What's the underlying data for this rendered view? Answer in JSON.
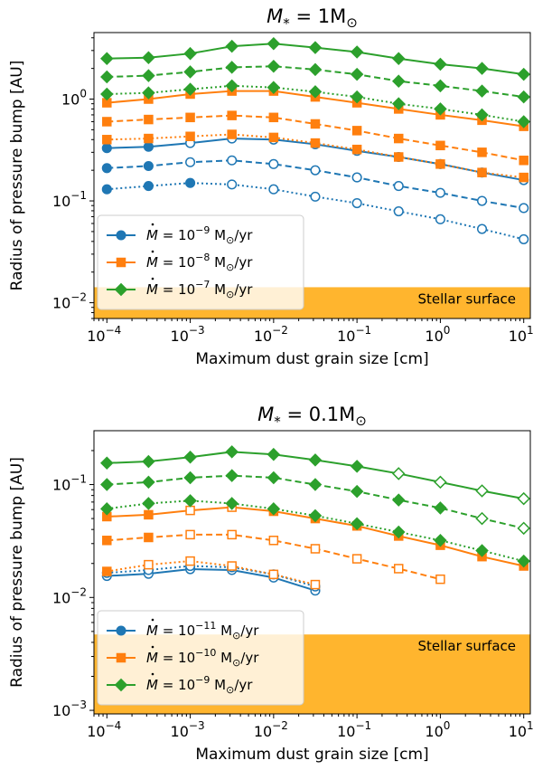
{
  "colors": {
    "blue": "#1f77b4",
    "orange": "#ff7f0e",
    "green": "#2ca02c",
    "stellar_band": "#ffa500"
  },
  "chart_data": [
    {
      "type": "line",
      "title": "M* = 1M⊙",
      "title_parts": {
        "var": "M",
        "sub": "*",
        "eq": " = 1M",
        "sun": "⊙"
      },
      "xlabel": "Maximum dust grain size [cm]",
      "ylabel": "Radius of pressure bump [AU]",
      "xscale": "log",
      "yscale": "log",
      "xlim": [
        7e-05,
        12
      ],
      "ylim": [
        0.007,
        4.5
      ],
      "xticks": [
        0.0001,
        0.001,
        0.01,
        0.1,
        1,
        10
      ],
      "xtick_labels": [
        {
          "base": "10",
          "exp": "−4"
        },
        {
          "base": "10",
          "exp": "−3"
        },
        {
          "base": "10",
          "exp": "−2"
        },
        {
          "base": "10",
          "exp": "−1"
        },
        {
          "base": "10",
          "exp": "0"
        },
        {
          "base": "10",
          "exp": "1"
        }
      ],
      "yticks": [
        0.01,
        0.1,
        1
      ],
      "ytick_labels": [
        {
          "base": "10",
          "exp": "−2"
        },
        {
          "base": "10",
          "exp": "−1"
        },
        {
          "base": "10",
          "exp": "0"
        }
      ],
      "band": {
        "label": "Stellar surface",
        "y_max": 0.0142
      },
      "legend": {
        "position": "lower-left",
        "entries": [
          {
            "color": "blue",
            "marker": "circle",
            "prefix": " = 10",
            "exp": "−9",
            "unit": " M",
            "sun": "⊙",
            "suffix": "/yr"
          },
          {
            "color": "orange",
            "marker": "square",
            "prefix": " = 10",
            "exp": "−8",
            "unit": " M",
            "sun": "⊙",
            "suffix": "/yr"
          },
          {
            "color": "green",
            "marker": "diamond",
            "prefix": " = 10",
            "exp": "−7",
            "unit": " M",
            "sun": "⊙",
            "suffix": "/yr"
          }
        ]
      },
      "x": [
        0.0001,
        0.000316,
        0.001,
        0.00316,
        0.01,
        0.0316,
        0.1,
        0.316,
        1,
        3.16,
        10
      ],
      "series": [
        {
          "color": "blue",
          "marker": "circle",
          "style": "solid",
          "values": [
            0.33,
            0.34,
            0.37,
            0.41,
            0.4,
            0.36,
            0.31,
            0.27,
            0.23,
            0.19,
            0.16
          ],
          "filled": [
            true,
            true,
            false,
            false,
            false,
            false,
            false,
            false,
            false,
            false,
            false
          ]
        },
        {
          "color": "blue",
          "marker": "circle",
          "style": "dashed",
          "values": [
            0.21,
            0.22,
            0.24,
            0.25,
            0.23,
            0.2,
            0.17,
            0.14,
            0.12,
            0.1,
            0.085
          ],
          "filled": [
            true,
            true,
            false,
            false,
            false,
            false,
            false,
            false,
            false,
            false,
            false
          ]
        },
        {
          "color": "blue",
          "marker": "circle",
          "style": "dotted",
          "values": [
            0.13,
            0.14,
            0.15,
            0.145,
            0.13,
            0.11,
            0.095,
            0.079,
            0.066,
            0.053,
            0.042
          ],
          "filled": [
            true,
            true,
            true,
            false,
            false,
            false,
            false,
            false,
            false,
            false,
            false
          ]
        },
        {
          "color": "orange",
          "marker": "square",
          "style": "solid",
          "values": [
            0.92,
            1.0,
            1.12,
            1.2,
            1.2,
            1.05,
            0.92,
            0.8,
            0.7,
            0.62,
            0.54
          ],
          "filled": [
            true,
            true,
            true,
            true,
            true,
            true,
            true,
            true,
            true,
            true,
            true
          ]
        },
        {
          "color": "orange",
          "marker": "square",
          "style": "dashed",
          "values": [
            0.6,
            0.63,
            0.66,
            0.69,
            0.66,
            0.57,
            0.49,
            0.41,
            0.35,
            0.3,
            0.25
          ],
          "filled": [
            true,
            true,
            true,
            true,
            true,
            true,
            true,
            true,
            true,
            true,
            true
          ]
        },
        {
          "color": "orange",
          "marker": "square",
          "style": "dotted",
          "values": [
            0.4,
            0.41,
            0.43,
            0.45,
            0.42,
            0.37,
            0.32,
            0.27,
            0.23,
            0.19,
            0.17
          ],
          "filled": [
            true,
            true,
            true,
            true,
            true,
            true,
            true,
            true,
            true,
            true,
            true
          ]
        },
        {
          "color": "green",
          "marker": "diamond",
          "style": "solid",
          "values": [
            2.5,
            2.55,
            2.8,
            3.3,
            3.5,
            3.2,
            2.9,
            2.5,
            2.2,
            2.0,
            1.75
          ],
          "filled": [
            true,
            true,
            true,
            true,
            true,
            true,
            true,
            true,
            true,
            true,
            true
          ]
        },
        {
          "color": "green",
          "marker": "diamond",
          "style": "dashed",
          "values": [
            1.65,
            1.7,
            1.85,
            2.05,
            2.1,
            1.95,
            1.75,
            1.5,
            1.35,
            1.2,
            1.05
          ],
          "filled": [
            true,
            true,
            true,
            true,
            true,
            true,
            true,
            true,
            true,
            true,
            true
          ]
        },
        {
          "color": "green",
          "marker": "diamond",
          "style": "dotted",
          "values": [
            1.12,
            1.15,
            1.25,
            1.35,
            1.3,
            1.18,
            1.05,
            0.9,
            0.8,
            0.7,
            0.6
          ],
          "filled": [
            true,
            true,
            true,
            true,
            true,
            true,
            true,
            true,
            true,
            true,
            true
          ]
        }
      ]
    },
    {
      "type": "line",
      "title": "M* = 0.1M⊙",
      "title_parts": {
        "var": "M",
        "sub": "*",
        "eq": " = 0.1M",
        "sun": "⊙"
      },
      "xlabel": "Maximum dust grain size [cm]",
      "ylabel": "Radius of pressure bump [AU]",
      "xscale": "log",
      "yscale": "log",
      "xlim": [
        7e-05,
        12
      ],
      "ylim": [
        0.00093,
        0.3
      ],
      "xticks": [
        0.0001,
        0.001,
        0.01,
        0.1,
        1,
        10
      ],
      "xtick_labels": [
        {
          "base": "10",
          "exp": "−4"
        },
        {
          "base": "10",
          "exp": "−3"
        },
        {
          "base": "10",
          "exp": "−2"
        },
        {
          "base": "10",
          "exp": "−1"
        },
        {
          "base": "10",
          "exp": "0"
        },
        {
          "base": "10",
          "exp": "1"
        }
      ],
      "yticks": [
        0.001,
        0.01,
        0.1
      ],
      "ytick_labels": [
        {
          "base": "10",
          "exp": "−3"
        },
        {
          "base": "10",
          "exp": "−2"
        },
        {
          "base": "10",
          "exp": "−1"
        }
      ],
      "band": {
        "label": "Stellar surface",
        "y_max": 0.0047
      },
      "legend": {
        "position": "lower-left",
        "entries": [
          {
            "color": "blue",
            "marker": "circle",
            "prefix": " = 10",
            "exp": "−11",
            "unit": " M",
            "sun": "⊙",
            "suffix": "/yr"
          },
          {
            "color": "orange",
            "marker": "square",
            "prefix": " = 10",
            "exp": "−10",
            "unit": " M",
            "sun": "⊙",
            "suffix": "/yr"
          },
          {
            "color": "green",
            "marker": "diamond",
            "prefix": " = 10",
            "exp": "−9",
            "unit": " M",
            "sun": "⊙",
            "suffix": "/yr"
          }
        ]
      },
      "x": [
        0.0001,
        0.000316,
        0.001,
        0.00316,
        0.01,
        0.0316,
        0.1,
        0.316,
        1,
        3.16,
        10
      ],
      "series": [
        {
          "color": "blue",
          "marker": "circle",
          "style": "solid",
          "values": [
            0.0155,
            0.0162,
            0.0178,
            0.0175,
            0.015,
            0.0115,
            null,
            null,
            null,
            null,
            null
          ],
          "filled": [
            false,
            false,
            false,
            false,
            false,
            false,
            false,
            false,
            false,
            false,
            false
          ]
        },
        {
          "color": "blue",
          "marker": "circle",
          "style": "dotted",
          "values": [
            0.0165,
            0.0175,
            0.019,
            0.0185,
            0.016,
            0.0125,
            null,
            null,
            null,
            null,
            null
          ],
          "filled": [
            false,
            false,
            false,
            false,
            false,
            false,
            false,
            false,
            false,
            false,
            false
          ]
        },
        {
          "color": "orange",
          "marker": "square",
          "style": "solid",
          "values": [
            0.052,
            0.054,
            0.059,
            0.063,
            0.058,
            0.05,
            0.043,
            0.035,
            0.029,
            0.023,
            0.019
          ],
          "filled": [
            true,
            true,
            false,
            false,
            true,
            true,
            true,
            true,
            true,
            true,
            true
          ]
        },
        {
          "color": "orange",
          "marker": "square",
          "style": "dashed",
          "values": [
            0.032,
            0.034,
            0.036,
            0.036,
            0.032,
            0.027,
            0.022,
            0.018,
            0.0145,
            null,
            null
          ],
          "filled": [
            true,
            true,
            false,
            false,
            false,
            false,
            false,
            false,
            false,
            false,
            false
          ]
        },
        {
          "color": "orange",
          "marker": "square",
          "style": "dotted",
          "values": [
            0.017,
            0.0195,
            0.021,
            0.019,
            0.016,
            0.013,
            null,
            null,
            null,
            null,
            null
          ],
          "filled": [
            true,
            false,
            false,
            false,
            false,
            false,
            false,
            false,
            false,
            false,
            false
          ]
        },
        {
          "color": "green",
          "marker": "diamond",
          "style": "solid",
          "values": [
            0.155,
            0.16,
            0.175,
            0.195,
            0.185,
            0.165,
            0.145,
            0.125,
            0.105,
            0.088,
            0.075
          ],
          "filled": [
            true,
            true,
            true,
            true,
            true,
            true,
            true,
            false,
            false,
            false,
            false
          ]
        },
        {
          "color": "green",
          "marker": "diamond",
          "style": "dashed",
          "values": [
            0.1,
            0.105,
            0.115,
            0.12,
            0.115,
            0.1,
            0.087,
            0.073,
            0.062,
            0.05,
            0.041
          ],
          "filled": [
            true,
            true,
            true,
            true,
            true,
            true,
            true,
            true,
            true,
            false,
            false
          ]
        },
        {
          "color": "green",
          "marker": "diamond",
          "style": "dotted",
          "values": [
            0.061,
            0.068,
            0.072,
            0.068,
            0.061,
            0.053,
            0.045,
            0.038,
            0.032,
            0.026,
            0.021
          ],
          "filled": [
            true,
            true,
            true,
            true,
            true,
            true,
            true,
            true,
            true,
            true,
            true
          ]
        }
      ]
    }
  ]
}
